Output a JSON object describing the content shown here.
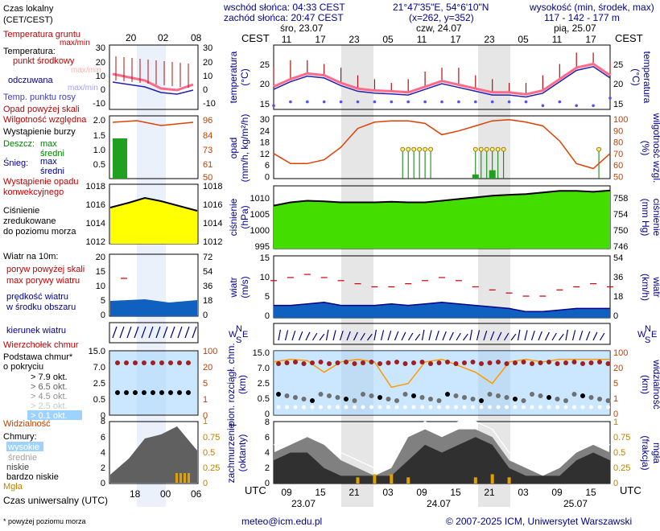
{
  "header": {
    "sunrise": "wschód słońca: 04:33 CEST",
    "sunset": "zachód słońca: 20:47 CEST",
    "coords": "21°47'35\"E, 54°6'10\"N",
    "grid": "(x=262, y=352)",
    "altitude_title": "wysokość (min, środek, max)",
    "altitude_values": "117 - 142 - 177 m",
    "cest": "CEST",
    "utc": "UTC",
    "day_labels": [
      "śro, 23.07",
      "czw, 24.07",
      "pią, 25.07"
    ],
    "cest_ticks": [
      "11",
      "17",
      "23",
      "05",
      "11",
      "17",
      "23",
      "05",
      "11",
      "17"
    ],
    "utc_ticks": [
      "09",
      "15",
      "21",
      "03",
      "09",
      "15",
      "21",
      "03",
      "09",
      "15"
    ],
    "utc_dates": [
      "23.07",
      "24.07",
      "25.07"
    ]
  },
  "legend": {
    "time_local": "Czas lokalny",
    "time_local_sub": "(CET/CEST)",
    "top_ticks": [
      "20",
      "02",
      "08"
    ],
    "bottom_ticks": [
      "18",
      "00",
      "06"
    ],
    "time_utc": "Czas uniwersalny (UTC)",
    "footnote": "* powyżej poziomu morza",
    "temp": {
      "ground_temp": "Temperatura gruntu",
      "ground_maxmin": "max/min",
      "temperature": "Temperatura:",
      "mid_point": "punkt środkowy",
      "maxmin": "max/min",
      "perceived": "odczuwana",
      "perceived_maxmin": "max/min",
      "dew_point": "Temp. punktu rosy",
      "ticks": [
        "30",
        "20",
        "10",
        "0",
        "-10"
      ]
    },
    "precip": {
      "above_scale": "Opad powyżej skali",
      "rel_humidity": "Wilgotność względna",
      "storm": "Wystąpienie burzy",
      "rain": "Deszcz:",
      "max": "max",
      "mean": "średni",
      "snow": "Śnieg:",
      "occurrence": "Wystąpienie opadu",
      "convective": "konwekcyjnego",
      "ticks_left": [
        "2.0",
        "1.5",
        "1.0",
        "0.5"
      ],
      "ticks_right": [
        "96",
        "84",
        "73",
        "61",
        "50"
      ]
    },
    "pressure": {
      "label1": "Ciśnienie",
      "label2": "zredukowane",
      "label3": "do poziomu morza",
      "ticks_left": [
        "1018",
        "1016",
        "1014",
        "1012"
      ],
      "ticks_right": [
        "1018",
        "1016",
        "1014",
        "1012"
      ]
    },
    "wind": {
      "title": "Wiatr na 10m:",
      "gusts_above": "poryw powyżej skali",
      "max_gusts": "max porywy wiatru",
      "speed": "prędkość wiatru",
      "center": "w środku obszaru",
      "ticks_left": [
        "20",
        "15",
        "10",
        "5",
        "0"
      ],
      "ticks_right": [
        "72",
        "54",
        "36",
        "18",
        "0"
      ]
    },
    "direction": "kierunek wiatru",
    "clouds": {
      "cloud_top": "Wierzchołek chmur",
      "base": "Podstawa chmur*",
      "coverage": "o pokryciu",
      "ok79": "> 7.9 okt.",
      "ok65": "> 6.5 okt.",
      "ok45": "> 4.5 okt.",
      "ok25": "> 2.5 okt.",
      "ok01": "> 0.1 okt.",
      "visibility": "Widzialność",
      "ticks_left": [
        "15.0",
        "7.0",
        "2.5",
        "0.5",
        "0"
      ],
      "ticks_right": [
        "100",
        "20",
        "5",
        "1",
        "0"
      ]
    },
    "cloudcover": {
      "title": "Chmury:",
      "high": "wysokie",
      "mid": "średnie",
      "low": "niskie",
      "very_low": "bardzo niskie",
      "fog": "Mgła",
      "ticks_left": [
        "8",
        "6",
        "4",
        "2",
        "0"
      ],
      "ticks_right": [
        "1",
        "0.75",
        "0.5",
        "0.25",
        "0"
      ]
    }
  },
  "panels": {
    "temp": {
      "ylabel_left": "temperatura",
      "ylabel_left_unit": "(°C)",
      "ylabel_right": "temperatura",
      "ylabel_right_unit": "(°C)",
      "ticks": [
        "25",
        "20",
        "15"
      ]
    },
    "precip": {
      "ylabel_left": "opad",
      "ylabel_left_unit": "(mm/h, kg/m²/h)",
      "ylabel_right": "wilgotność wzgl.",
      "ylabel_right_unit": "(%)",
      "ticks_left": [
        "30",
        "24",
        "18",
        "12",
        "6",
        "0"
      ],
      "ticks_right": [
        "100",
        "90",
        "80",
        "70",
        "60",
        "50"
      ]
    },
    "pressure": {
      "ylabel_left": "ciśnienie",
      "ylabel_left_unit": "(hPa)",
      "ylabel_right": "ciśnienie",
      "ylabel_right_unit": "(mm Hg)",
      "ticks_left": [
        "1010",
        "1005",
        "1000",
        "995"
      ],
      "ticks_right": [
        "758",
        "754",
        "750",
        "746"
      ]
    },
    "wind": {
      "ylabel_left": "wiatr",
      "ylabel_left_unit": "(m/s)",
      "ylabel_right": "wiatr",
      "ylabel_right_unit": "(km/h)",
      "ticks_left": [
        "15",
        "10",
        "5",
        "0"
      ],
      "ticks_right": [
        "54",
        "36",
        "18",
        "0"
      ]
    },
    "direction": {
      "compass_n": "N",
      "compass_w": "W",
      "compass_s": "S",
      "compass_e": "E"
    },
    "cloud": {
      "ylabel_left": "pion. rozciągł. chm.",
      "ylabel_left_unit": "(km)",
      "ylabel_right": "widzialność",
      "ylabel_right_unit": "(km)",
      "ticks_left": [
        "15.0",
        "7.0",
        "2.5",
        "0.5",
        "0"
      ],
      "ticks_right": [
        "100",
        "20",
        "5",
        "1",
        "0"
      ]
    },
    "cover": {
      "ylabel_left": "zachmurzenie",
      "ylabel_left_unit": "(oktanty)",
      "ylabel_right": "mgła",
      "ylabel_right_unit": "(frakcja)",
      "ticks_left": [
        "8",
        "6",
        "4",
        "2",
        "0"
      ],
      "ticks_right": [
        "1",
        "0.75",
        "0.5",
        "0.25",
        "0"
      ]
    }
  },
  "footer": {
    "email": "meteo@icm.edu.pl",
    "copyright": "© 2007-2025 ICM, Uniwersytet Warszawski"
  },
  "colors": {
    "accent_blue": "#00008b",
    "accent_red": "#c00000",
    "night_shade": "#e0e0e0",
    "sky": "#9fd3ff",
    "pressure_fill": "#44dd00",
    "wind_fill": "#1060c0"
  },
  "chart_data": {
    "type": "line",
    "hours": [
      0,
      3,
      6,
      9,
      12,
      15,
      18,
      21,
      24,
      27,
      30,
      33,
      36,
      39,
      42,
      45,
      48,
      51,
      54,
      57,
      60
    ],
    "temperature": [
      19,
      21,
      22.5,
      22,
      20,
      18.5,
      18,
      17.8,
      17.5,
      19,
      20.5,
      19.5,
      18.5,
      17.5,
      17.5,
      17,
      18,
      21,
      24,
      25,
      22
    ],
    "temperature_max": [
      24,
      26,
      26,
      25,
      24,
      22,
      21,
      20,
      21,
      23,
      24,
      24,
      22,
      21,
      20,
      20,
      22,
      25,
      28,
      28,
      26
    ],
    "dew_point": [
      14,
      15,
      15,
      15,
      15,
      15,
      15,
      15,
      15,
      15,
      15,
      15,
      15,
      15,
      15,
      15,
      14,
      15,
      14,
      14,
      16
    ],
    "precip_mean": [
      0,
      0,
      0,
      0,
      0,
      0,
      0,
      0,
      0,
      0,
      0,
      0,
      2,
      4,
      0,
      0,
      0,
      0,
      0,
      0,
      0
    ],
    "humidity": [
      70,
      62,
      62,
      65,
      75,
      90,
      95,
      96,
      96,
      94,
      85,
      88,
      92,
      96,
      97,
      95,
      92,
      80,
      62,
      58,
      70
    ],
    "pressure": [
      1008,
      1009,
      1009.5,
      1009.3,
      1009,
      1009,
      1009,
      1009.2,
      1009,
      1009,
      1009.5,
      1010,
      1010.5,
      1011,
      1011.3,
      1011.5,
      1012,
      1012.5,
      1012.5,
      1012.2,
      1012.6
    ],
    "wind": [
      4,
      4,
      4.5,
      5,
      4,
      4,
      4,
      4.5,
      4,
      4.5,
      5,
      4.5,
      4,
      3.5,
      3,
      2,
      2,
      2.5,
      3,
      3,
      3
    ],
    "gusts": [
      12,
      13,
      14,
      13,
      12,
      11,
      10,
      10,
      11,
      12,
      13,
      12,
      10,
      9,
      8,
      7,
      7,
      9,
      10,
      11,
      10
    ],
    "visibility": [
      30,
      40,
      35,
      10,
      30,
      40,
      30,
      2,
      3,
      30,
      40,
      20,
      10,
      3,
      30,
      40,
      30,
      40,
      40,
      40,
      40
    ],
    "fog": [
      0,
      0,
      0,
      0,
      0,
      0.1,
      0.15,
      0.15,
      0.1,
      0,
      0,
      0,
      0.1,
      0.15,
      0.1,
      0,
      0,
      0,
      0,
      0,
      0
    ]
  }
}
